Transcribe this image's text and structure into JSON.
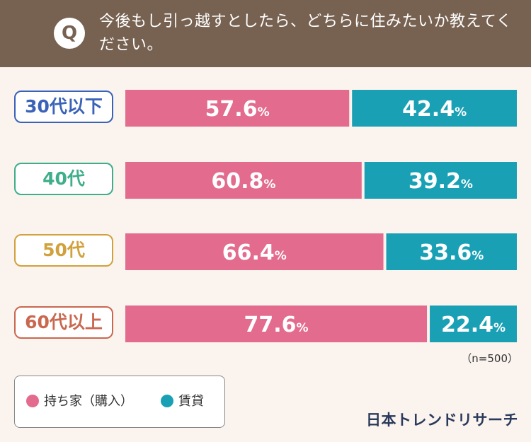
{
  "header": {
    "q_mark": "Q",
    "question": "今後もし引っ越すとしたら、どちらに住みたいか教えてください。"
  },
  "chart_data": {
    "type": "bar",
    "stacked": true,
    "orientation": "horizontal",
    "title": "今後もし引っ越すとしたら、どちらに住みたいか教えてください。",
    "categories": [
      "30代以下",
      "40代",
      "50代",
      "60代以上"
    ],
    "series": [
      {
        "name": "持ち家（購入）",
        "values": [
          57.6,
          60.8,
          66.4,
          77.6
        ]
      },
      {
        "name": "賃貸",
        "values": [
          42.4,
          39.2,
          33.6,
          22.4
        ]
      }
    ],
    "value_suffix": "%",
    "xlim": [
      0,
      100
    ],
    "grid": false,
    "legend_position": "bottom-left"
  },
  "colors": {
    "own": "#e36b8d",
    "rent": "#1aa0b5",
    "label_borders": [
      "#3a62b8",
      "#3fae8a",
      "#d1a13c",
      "#c9684f"
    ],
    "header_bg": "#776252"
  },
  "note": "（n=500）",
  "legend": {
    "own_label": "持ち家（購入）",
    "rent_label": "賃貸"
  },
  "brand": "日本トレンドリサーチ"
}
